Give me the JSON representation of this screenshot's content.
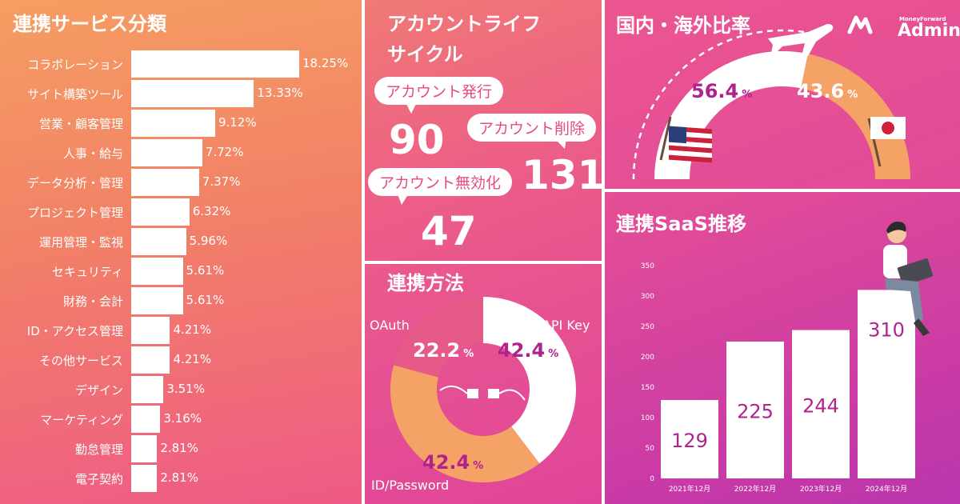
{
  "colors": {
    "panel_orange": "#f28a63",
    "panel_pink": "#e64f95",
    "panel_magenta": "#c93aa6",
    "bar_white": "#ffffff",
    "donut_peach": "#f5a267",
    "donut_rose": "#e55a86",
    "value_magenta": "#b0228c"
  },
  "categories_panel": {
    "title": "連携サービス分類",
    "chart_data": {
      "type": "bar",
      "orientation": "horizontal",
      "categories": [
        "コラボレーション",
        "サイト構築ツール",
        "営業・顧客管理",
        "人事・給与",
        "データ分析・管理",
        "プロジェクト管理",
        "運用管理・監視",
        "セキュリティ",
        "財務・会計",
        "ID・アクセス管理",
        "その他サービス",
        "デザイン",
        "マーケティング",
        "勤怠管理",
        "電子契約"
      ],
      "values": [
        18.25,
        13.33,
        9.12,
        7.72,
        7.37,
        6.32,
        5.96,
        5.61,
        5.61,
        4.21,
        4.21,
        3.51,
        3.16,
        2.81,
        2.81
      ],
      "value_labels": [
        "18.25%",
        "13.33%",
        "9.12%",
        "7.72%",
        "7.37%",
        "6.32%",
        "5.96%",
        "5.61%",
        "5.61%",
        "4.21%",
        "4.21%",
        "3.51%",
        "3.16%",
        "2.81%",
        "2.81%"
      ],
      "unit": "%"
    }
  },
  "lifecycle_panel": {
    "title_line1": "アカウントライフ",
    "title_line2": "サイクル",
    "items": [
      {
        "label": "アカウント発行",
        "value": "90"
      },
      {
        "label": "アカウント削除",
        "value": "131"
      },
      {
        "label": "アカウント無効化",
        "value": "47"
      }
    ]
  },
  "method_panel": {
    "title": "連携方法",
    "chart_data": {
      "type": "pie",
      "donut": true,
      "slices": [
        {
          "label": "API Key",
          "value": 42.4,
          "display": "42.4",
          "unit": "%",
          "color": "#ffffff"
        },
        {
          "label": "ID/Password",
          "value": 42.4,
          "display": "42.4",
          "unit": "%",
          "color": "#f5a267"
        },
        {
          "label": "OAuth",
          "value": 22.2,
          "display": "22.2",
          "unit": "%",
          "color": "#e55a86"
        }
      ]
    },
    "center_icon": "plug-connector-icon"
  },
  "ratio_panel": {
    "title": "国内・海外比率",
    "chart_data": {
      "type": "pie",
      "shape": "half-donut",
      "slices": [
        {
          "label": "US flag",
          "value": 56.4,
          "display": "56.4",
          "unit": "%",
          "color": "#ffffff"
        },
        {
          "label": "Japan flag",
          "value": 43.6,
          "display": "43.6",
          "unit": "%",
          "color": "#f5a267"
        }
      ]
    },
    "icons": [
      "airplane-icon",
      "us-flag-icon",
      "japan-flag-icon"
    ]
  },
  "brand": {
    "small_text": "MoneyForward",
    "name": "Admina"
  },
  "trend_panel": {
    "title": "連携SaaS推移",
    "chart_data": {
      "type": "bar",
      "categories": [
        "2021年12月",
        "2022年12月",
        "2023年12月",
        "2024年12月"
      ],
      "values": [
        129,
        225,
        244,
        310
      ],
      "value_labels": [
        "129",
        "225",
        "244",
        "310"
      ],
      "ylim": [
        0,
        350
      ],
      "yticks": [
        0,
        50,
        100,
        150,
        200,
        250,
        300,
        350
      ],
      "ytick_labels": [
        "0",
        "50",
        "100",
        "150",
        "200",
        "250",
        "300",
        "350"
      ],
      "grid": false
    },
    "illustration": "person-with-laptop-icon"
  }
}
